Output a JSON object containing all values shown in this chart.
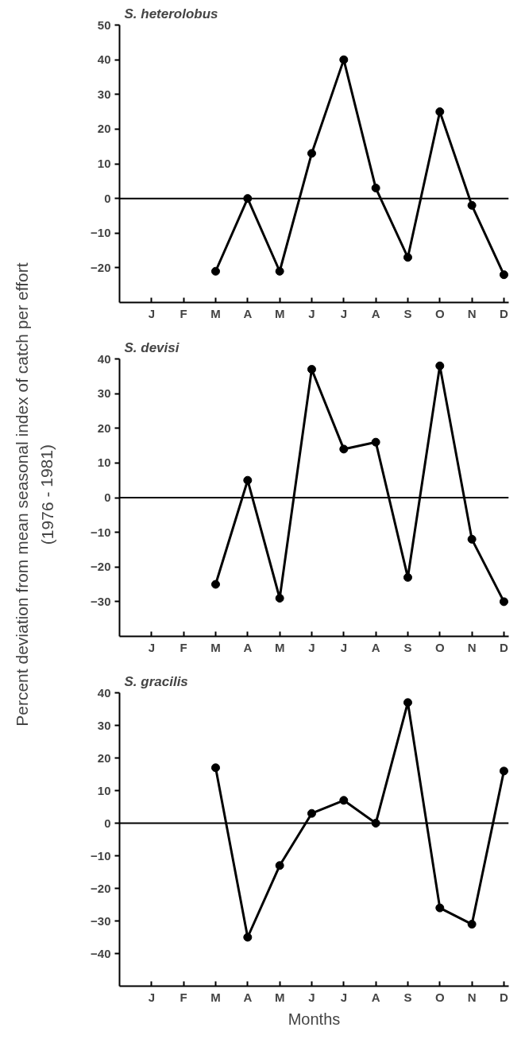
{
  "chart_data": [
    {
      "type": "line",
      "title": "S. heterolobus",
      "ylabel": "Percent deviation from mean seasonal index of catch per effort\n(1976 - 1981)",
      "categories": [
        "J",
        "F",
        "M",
        "A",
        "M",
        "J",
        "J",
        "A",
        "S",
        "O",
        "N",
        "D"
      ],
      "series": [
        {
          "color": "#000000",
          "values": [
            null,
            null,
            -21,
            0,
            -21,
            13,
            40,
            3,
            -17,
            25,
            -2,
            -22
          ]
        }
      ],
      "ylim": [
        -30,
        50
      ],
      "yticks": [
        50,
        40,
        30,
        20,
        10,
        0,
        -10,
        -20
      ],
      "ref_lines": [
        {
          "axis": "y",
          "value": 0,
          "color": "#000000"
        }
      ],
      "marker": "circle",
      "line_style": "solid",
      "grid": false
    },
    {
      "type": "line",
      "title": "S. devisi",
      "categories": [
        "J",
        "F",
        "M",
        "A",
        "M",
        "J",
        "J",
        "A",
        "S",
        "O",
        "N",
        "D"
      ],
      "series": [
        {
          "color": "#000000",
          "values": [
            null,
            null,
            -25,
            5,
            -29,
            37,
            14,
            16,
            -23,
            38,
            -12,
            -30
          ]
        }
      ],
      "ylim": [
        -40,
        40
      ],
      "yticks": [
        40,
        30,
        20,
        10,
        0,
        -10,
        -20,
        -30
      ],
      "ref_lines": [
        {
          "axis": "y",
          "value": 0,
          "color": "#000000"
        }
      ],
      "marker": "circle",
      "line_style": "solid",
      "grid": false
    },
    {
      "type": "line",
      "title": "S. gracilis",
      "xlabel": "Months",
      "categories": [
        "J",
        "F",
        "M",
        "A",
        "M",
        "J",
        "J",
        "A",
        "S",
        "O",
        "N",
        "D"
      ],
      "series": [
        {
          "color": "#000000",
          "values": [
            null,
            null,
            17,
            -35,
            -13,
            3,
            7,
            0,
            37,
            -26,
            -31,
            16
          ]
        }
      ],
      "ylim": [
        -50,
        40
      ],
      "yticks": [
        40,
        30,
        20,
        10,
        0,
        -10,
        -20,
        -30,
        -40
      ],
      "ref_lines": [
        {
          "axis": "y",
          "value": 0,
          "color": "#000000"
        }
      ],
      "marker": "circle",
      "line_style": "solid",
      "grid": false
    }
  ]
}
